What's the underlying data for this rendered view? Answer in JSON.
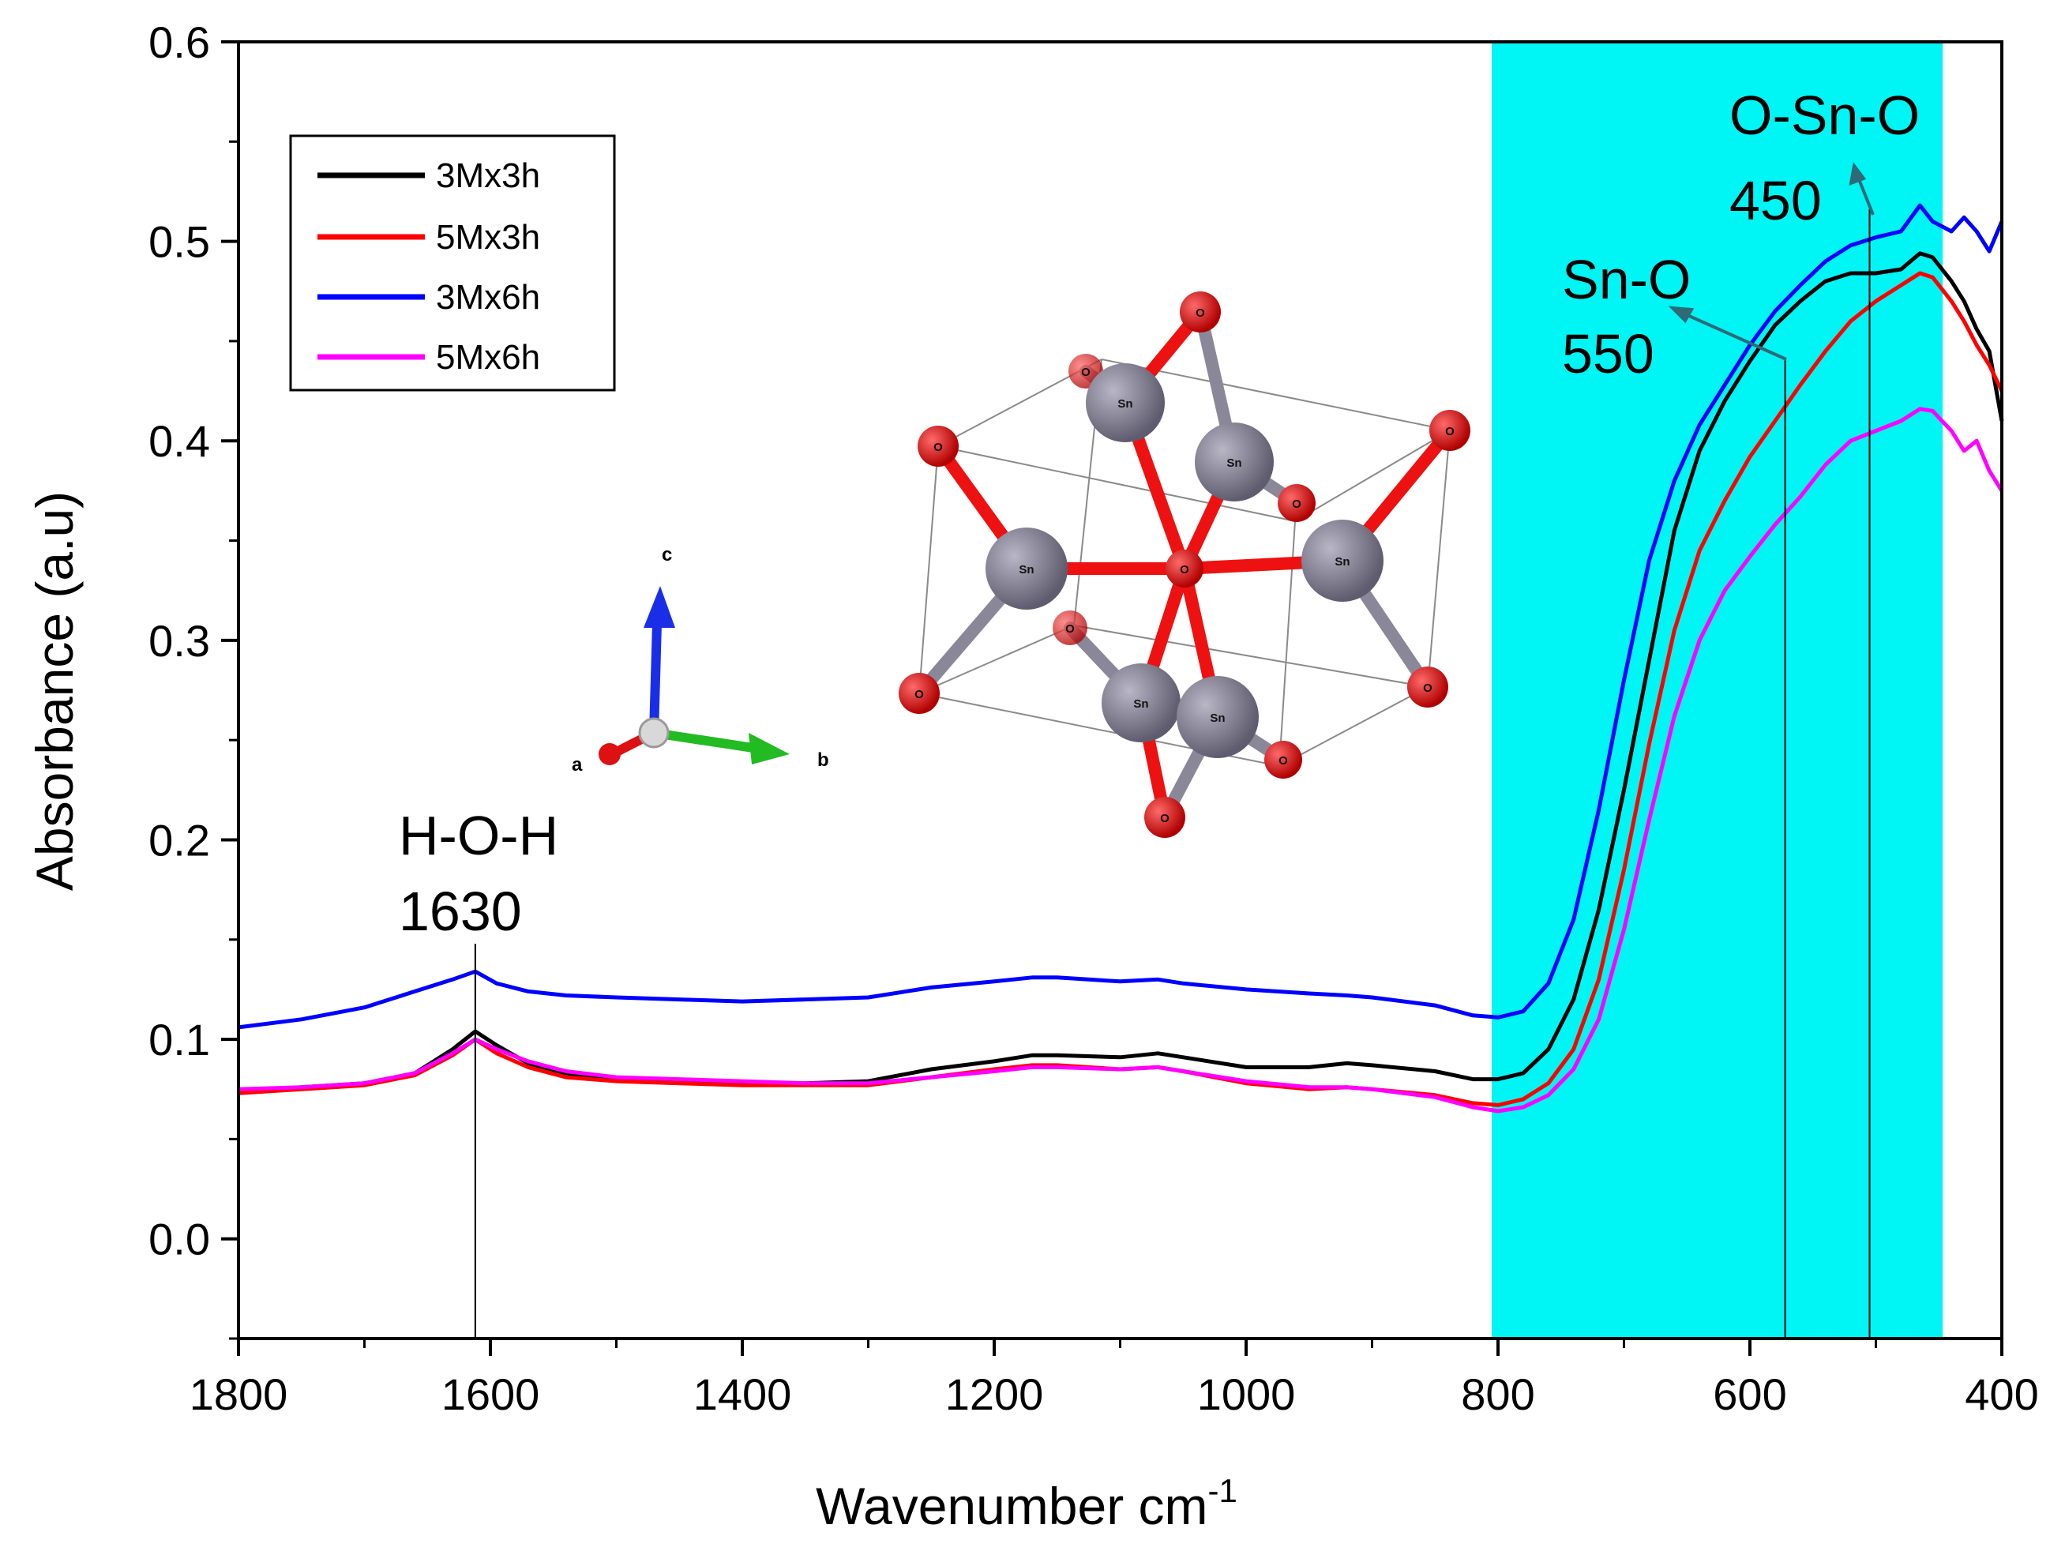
{
  "chart_data": {
    "type": "line",
    "xlabel": "Wavenumber cm",
    "xlabel_sup": "-1",
    "ylabel": "Absorbance (a.u)",
    "xlim": [
      1800,
      400
    ],
    "ylim": [
      -0.05,
      0.6
    ],
    "x_ticks": [
      "1800",
      "1600",
      "1400",
      "1200",
      "1000",
      "800",
      "600",
      "400"
    ],
    "y_ticks": [
      "0.0",
      "0.1",
      "0.2",
      "0.3",
      "0.4",
      "0.5",
      "0.6"
    ],
    "x_tick_values": [
      1800,
      1600,
      1400,
      1200,
      1000,
      800,
      600,
      400
    ],
    "y_tick_values": [
      0.0,
      0.1,
      0.2,
      0.3,
      0.4,
      0.5,
      0.6
    ],
    "highlight_region": {
      "x": [
        805,
        447
      ],
      "color": "#00f5f5"
    },
    "legend_position": "top-left",
    "series": [
      {
        "name": "3Mx3h",
        "color": "#000000",
        "x": [
          1800,
          1750,
          1700,
          1660,
          1630,
          1612,
          1595,
          1570,
          1540,
          1500,
          1450,
          1400,
          1350,
          1300,
          1250,
          1200,
          1170,
          1150,
          1100,
          1070,
          1050,
          1000,
          950,
          920,
          900,
          850,
          820,
          800,
          780,
          760,
          740,
          720,
          700,
          680,
          660,
          640,
          620,
          600,
          580,
          560,
          540,
          520,
          500,
          480,
          465,
          455,
          440,
          430,
          420,
          410,
          400
        ],
        "y": [
          0.074,
          0.076,
          0.078,
          0.083,
          0.095,
          0.104,
          0.097,
          0.088,
          0.083,
          0.08,
          0.079,
          0.078,
          0.078,
          0.079,
          0.085,
          0.089,
          0.092,
          0.092,
          0.091,
          0.093,
          0.091,
          0.086,
          0.086,
          0.088,
          0.087,
          0.084,
          0.08,
          0.08,
          0.083,
          0.095,
          0.12,
          0.165,
          0.225,
          0.29,
          0.355,
          0.395,
          0.42,
          0.44,
          0.458,
          0.47,
          0.48,
          0.484,
          0.484,
          0.486,
          0.494,
          0.492,
          0.48,
          0.47,
          0.456,
          0.445,
          0.41
        ]
      },
      {
        "name": "5Mx3h",
        "color": "#ff0000",
        "x": [
          1800,
          1750,
          1700,
          1660,
          1630,
          1612,
          1595,
          1570,
          1540,
          1500,
          1450,
          1400,
          1350,
          1300,
          1250,
          1200,
          1170,
          1150,
          1100,
          1070,
          1050,
          1000,
          950,
          920,
          900,
          850,
          820,
          800,
          780,
          760,
          740,
          720,
          700,
          680,
          660,
          640,
          620,
          600,
          580,
          560,
          540,
          520,
          500,
          480,
          465,
          455,
          440,
          430,
          420,
          410,
          400
        ],
        "y": [
          0.073,
          0.075,
          0.077,
          0.082,
          0.092,
          0.1,
          0.093,
          0.086,
          0.081,
          0.079,
          0.078,
          0.077,
          0.077,
          0.077,
          0.081,
          0.085,
          0.087,
          0.087,
          0.085,
          0.086,
          0.084,
          0.078,
          0.075,
          0.076,
          0.075,
          0.072,
          0.068,
          0.067,
          0.07,
          0.078,
          0.095,
          0.13,
          0.185,
          0.248,
          0.305,
          0.345,
          0.37,
          0.392,
          0.41,
          0.428,
          0.445,
          0.46,
          0.47,
          0.478,
          0.484,
          0.482,
          0.47,
          0.46,
          0.448,
          0.438,
          0.425
        ]
      },
      {
        "name": "3Mx6h",
        "color": "#0000ff",
        "x": [
          1800,
          1750,
          1700,
          1660,
          1630,
          1612,
          1595,
          1570,
          1540,
          1500,
          1450,
          1400,
          1350,
          1300,
          1250,
          1200,
          1170,
          1150,
          1100,
          1070,
          1050,
          1000,
          950,
          920,
          900,
          850,
          820,
          800,
          780,
          760,
          740,
          720,
          700,
          680,
          660,
          640,
          620,
          600,
          580,
          560,
          540,
          520,
          500,
          480,
          465,
          455,
          440,
          430,
          420,
          410,
          400
        ],
        "y": [
          0.106,
          0.11,
          0.116,
          0.124,
          0.13,
          0.134,
          0.128,
          0.124,
          0.122,
          0.121,
          0.12,
          0.119,
          0.12,
          0.121,
          0.126,
          0.129,
          0.131,
          0.131,
          0.129,
          0.13,
          0.128,
          0.125,
          0.123,
          0.122,
          0.121,
          0.117,
          0.112,
          0.111,
          0.114,
          0.128,
          0.16,
          0.215,
          0.28,
          0.34,
          0.38,
          0.408,
          0.428,
          0.448,
          0.465,
          0.478,
          0.49,
          0.498,
          0.502,
          0.505,
          0.518,
          0.51,
          0.505,
          0.512,
          0.505,
          0.495,
          0.51
        ]
      },
      {
        "name": "5Mx6h",
        "color": "#ff00ff",
        "x": [
          1800,
          1750,
          1700,
          1660,
          1630,
          1612,
          1595,
          1570,
          1540,
          1500,
          1450,
          1400,
          1350,
          1300,
          1250,
          1200,
          1170,
          1150,
          1100,
          1070,
          1050,
          1000,
          950,
          920,
          900,
          850,
          820,
          800,
          780,
          760,
          740,
          720,
          700,
          680,
          660,
          640,
          620,
          600,
          580,
          560,
          540,
          520,
          500,
          480,
          465,
          455,
          440,
          430,
          420,
          410,
          400
        ],
        "y": [
          0.075,
          0.076,
          0.078,
          0.083,
          0.093,
          0.1,
          0.095,
          0.089,
          0.084,
          0.081,
          0.08,
          0.079,
          0.078,
          0.078,
          0.081,
          0.084,
          0.086,
          0.086,
          0.085,
          0.086,
          0.084,
          0.079,
          0.076,
          0.076,
          0.075,
          0.071,
          0.066,
          0.064,
          0.066,
          0.072,
          0.085,
          0.11,
          0.155,
          0.21,
          0.262,
          0.3,
          0.325,
          0.342,
          0.358,
          0.372,
          0.388,
          0.4,
          0.405,
          0.41,
          0.416,
          0.415,
          0.405,
          0.395,
          0.4,
          0.385,
          0.375
        ]
      }
    ],
    "annotations": [
      {
        "line1": "H-O-H",
        "line2": "1630",
        "x": 1612
      },
      {
        "line1": "Sn-O",
        "line2": "550",
        "x": 572
      },
      {
        "line1": "O-Sn-O",
        "line2": "450",
        "x": 505
      }
    ],
    "inset": {
      "atom_symbols": [
        "O",
        "Sn"
      ],
      "axis_letters": [
        "a",
        "b",
        "c"
      ],
      "tin_color": "#8a8898",
      "oxygen_color": "#ee1111"
    }
  }
}
